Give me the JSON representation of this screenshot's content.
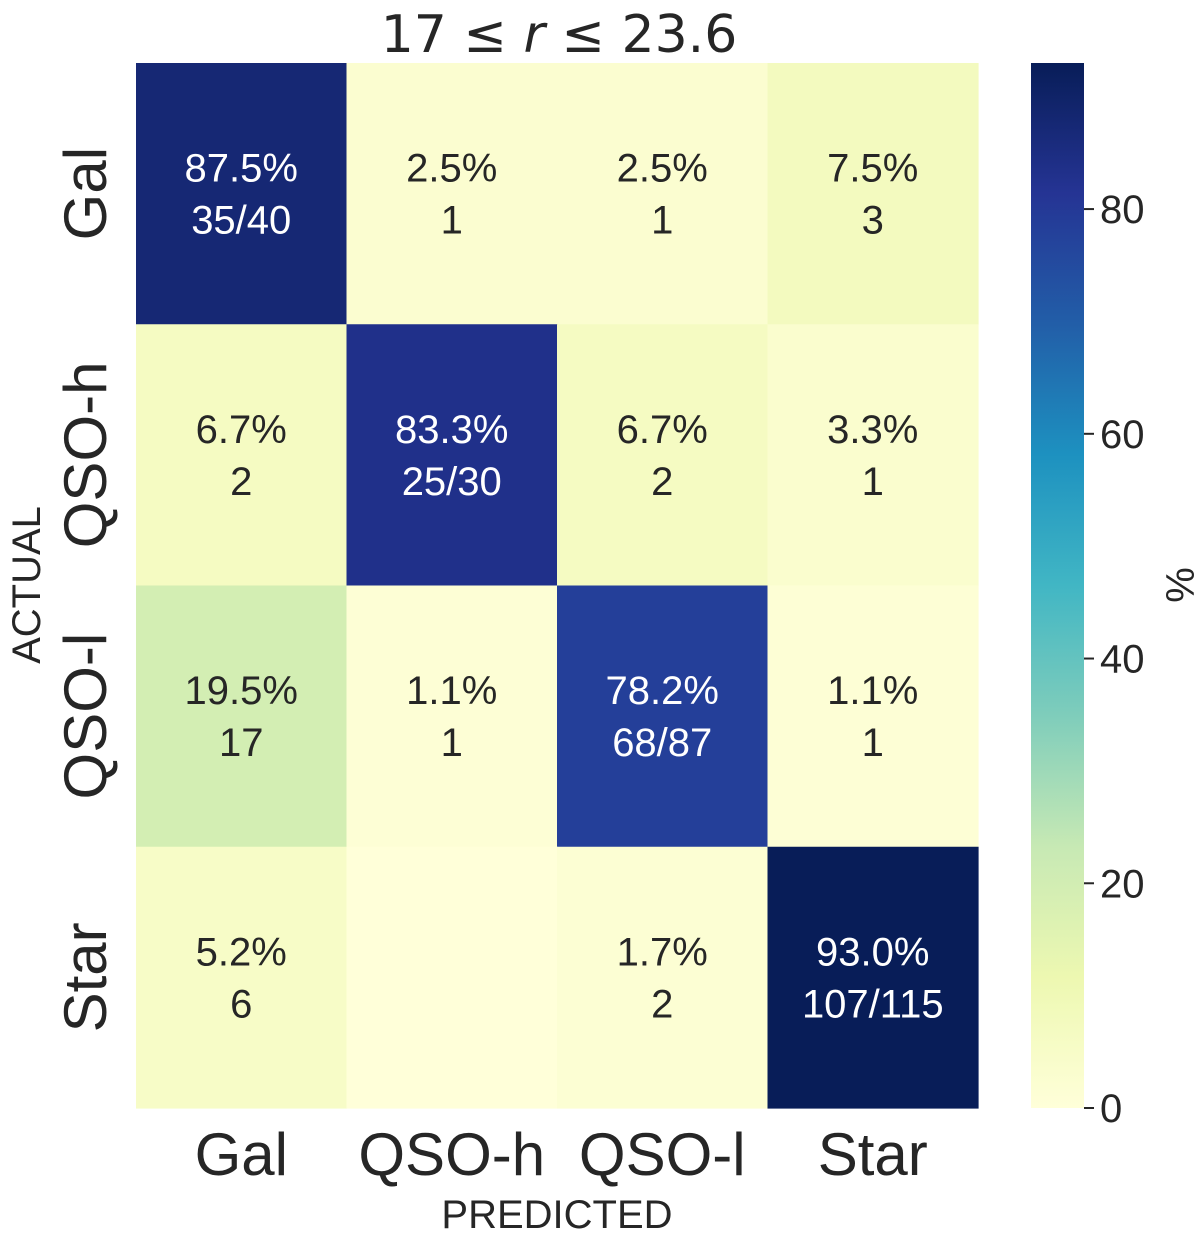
{
  "chart_data": {
    "type": "heatmap",
    "title": "17 ≤ r ≤ 23.6",
    "title_parts": [
      "17 ≤ ",
      "r",
      " ≤ 23.6"
    ],
    "xlabel": "PREDICTED",
    "ylabel": "ACTUAL",
    "x_categories": [
      "Gal",
      "QSO-h",
      "QSO-l",
      "Star"
    ],
    "y_categories": [
      "Gal",
      "QSO-h",
      "QSO-l",
      "Star"
    ],
    "values_percent": [
      [
        87.5,
        2.5,
        2.5,
        7.5
      ],
      [
        6.7,
        83.3,
        6.7,
        3.3
      ],
      [
        19.5,
        1.1,
        78.2,
        1.1
      ],
      [
        5.2,
        0,
        1.7,
        93.0
      ]
    ],
    "cell_labels": [
      [
        [
          "87.5%",
          "35/40"
        ],
        [
          "2.5%",
          "1"
        ],
        [
          "2.5%",
          "1"
        ],
        [
          "7.5%",
          "3"
        ]
      ],
      [
        [
          "6.7%",
          "2"
        ],
        [
          "83.3%",
          "25/30"
        ],
        [
          "6.7%",
          "2"
        ],
        [
          "3.3%",
          "1"
        ]
      ],
      [
        [
          "19.5%",
          "17"
        ],
        [
          "1.1%",
          "1"
        ],
        [
          "78.2%",
          "68/87"
        ],
        [
          "1.1%",
          "1"
        ]
      ],
      [
        [
          "5.2%",
          "6"
        ],
        [
          "",
          ""
        ],
        [
          "1.7%",
          "2"
        ],
        [
          "93.0%",
          "107/115"
        ]
      ]
    ],
    "colorbar": {
      "label": "%",
      "ticks": [
        0,
        20,
        40,
        60,
        80
      ],
      "range": [
        0,
        93.0
      ],
      "colormap": "YlGnBu"
    }
  }
}
